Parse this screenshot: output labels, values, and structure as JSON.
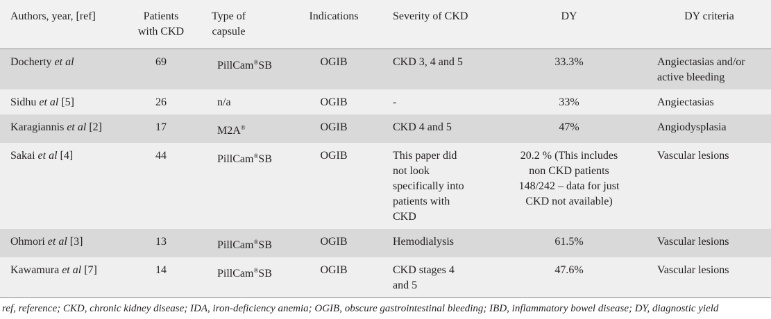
{
  "table": {
    "headers": [
      "Authors, year, [ref]",
      "Patients with CKD",
      "Type of capsule",
      "Indications",
      "Severity of CKD",
      "DY",
      "DY criteria"
    ],
    "rows": [
      [
        [
          "Docherty ",
          {
            "text": "et al",
            "style": "italic"
          }
        ],
        [
          "69"
        ],
        [
          "PillCam",
          {
            "text": "®",
            "style": "sup"
          },
          "SB"
        ],
        [
          "OGIB"
        ],
        [
          "CKD 3, 4 and 5"
        ],
        [
          "33.3%"
        ],
        [
          "Angiectasias and/or active bleeding"
        ]
      ],
      [
        [
          "Sidhu ",
          {
            "text": "et al",
            "style": "italic"
          },
          " [5]"
        ],
        [
          "26"
        ],
        [
          "n/a"
        ],
        [
          "OGIB"
        ],
        [
          "-"
        ],
        [
          "33%"
        ],
        [
          "Angiectasias"
        ]
      ],
      [
        [
          "Karagiannis ",
          {
            "text": "et al",
            "style": "italic"
          },
          " [2]"
        ],
        [
          "17"
        ],
        [
          "M2A",
          {
            "text": "®",
            "style": "sup"
          }
        ],
        [
          "OGIB"
        ],
        [
          "CKD 4 and 5"
        ],
        [
          "47%"
        ],
        [
          "Angiodysplasia"
        ]
      ],
      [
        [
          "Sakai ",
          {
            "text": "et al",
            "style": "italic"
          },
          " [4]"
        ],
        [
          "44"
        ],
        [
          "PillCam",
          {
            "text": "®",
            "style": "sup"
          },
          "SB"
        ],
        [
          "OGIB"
        ],
        [
          "This paper did not look specifically into patients with CKD"
        ],
        [
          "20.2 % (This includes non CKD patients 148/242 – data for just CKD not available)"
        ],
        [
          "Vascular lesions"
        ]
      ],
      [
        [
          "Ohmori ",
          {
            "text": "et al",
            "style": "italic"
          },
          " [3]"
        ],
        [
          "13"
        ],
        [
          "PillCam",
          {
            "text": "®",
            "style": "sup"
          },
          "SB"
        ],
        [
          "OGIB"
        ],
        [
          "Hemodialysis"
        ],
        [
          "61.5%"
        ],
        [
          "Vascular lesions"
        ]
      ],
      [
        [
          "Kawamura ",
          {
            "text": "et al",
            "style": "italic"
          },
          " [7]"
        ],
        [
          "14"
        ],
        [
          "PillCam",
          {
            "text": "®",
            "style": "sup"
          },
          "SB"
        ],
        [
          "OGIB"
        ],
        [
          "CKD stages 4 and 5"
        ],
        [
          "47.6%"
        ],
        [
          "Vascular lesions"
        ]
      ]
    ],
    "footnote": "ref, reference; CKD, chronic kidney disease; IDA, iron-deficiency anemia; OGIB, obscure gastrointestinal bleeding; IBD, inflammatory bowel disease; DY, diagnostic yield"
  }
}
